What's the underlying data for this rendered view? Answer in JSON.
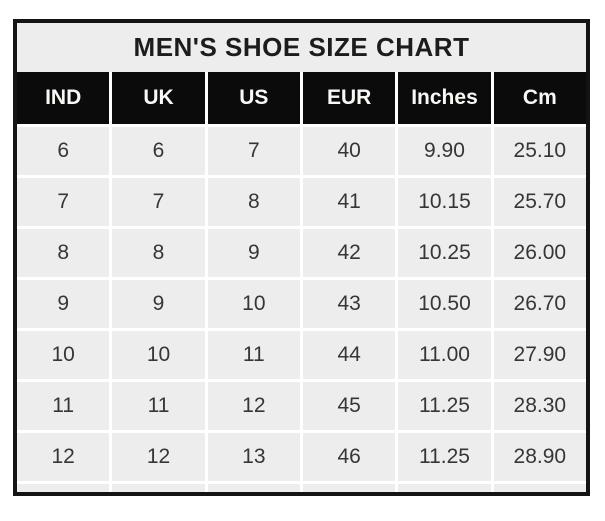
{
  "title": "MEN'S SHOE SIZE CHART",
  "colors": {
    "page_bg": "#ffffff",
    "outer_border": "#141414",
    "title_bg": "#ededed",
    "title_text": "#1c1c1c",
    "header_bg": "#0b0b0b",
    "header_text": "#faf8f4",
    "cell_bg": "#ededed",
    "cell_text": "#363636",
    "grid_line": "#ffffff"
  },
  "chart_data": {
    "type": "table",
    "title": "MEN'S SHOE SIZE CHART",
    "columns": [
      "IND",
      "UK",
      "US",
      "EUR",
      "Inches",
      "Cm"
    ],
    "rows": [
      [
        "6",
        "6",
        "7",
        "40",
        "9.90",
        "25.10"
      ],
      [
        "7",
        "7",
        "8",
        "41",
        "10.15",
        "25.70"
      ],
      [
        "8",
        "8",
        "9",
        "42",
        "10.25",
        "26.00"
      ],
      [
        "9",
        "9",
        "10",
        "43",
        "10.50",
        "26.70"
      ],
      [
        "10",
        "10",
        "11",
        "44",
        "11.00",
        "27.90"
      ],
      [
        "11",
        "11",
        "12",
        "45",
        "11.25",
        "28.30"
      ],
      [
        "12",
        "12",
        "13",
        "46",
        "11.25",
        "28.90"
      ]
    ]
  }
}
